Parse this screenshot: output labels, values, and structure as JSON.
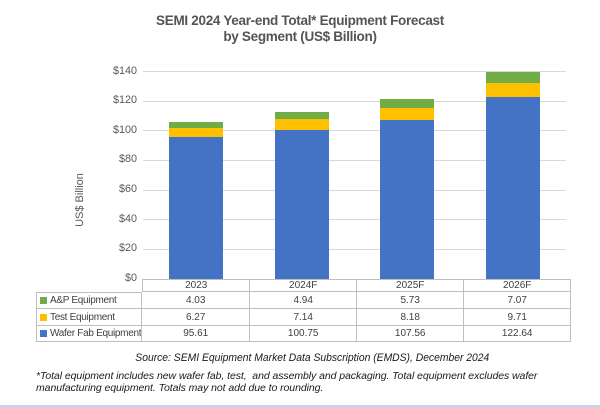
{
  "title": {
    "line1": "SEMI 2024 Year-end Total* Equipment Forecast",
    "line2": "by Segment (US$ Billion)"
  },
  "chart_data": {
    "type": "bar",
    "stacked": true,
    "categories": [
      "2023",
      "2024F",
      "2025F",
      "2026F"
    ],
    "series": [
      {
        "name": "Wafer Fab Equipment",
        "color": "#4472C4",
        "values": [
          95.61,
          100.75,
          107.56,
          122.64
        ]
      },
      {
        "name": "Test Equipment",
        "color": "#FFC000",
        "values": [
          6.27,
          7.14,
          8.18,
          9.71
        ]
      },
      {
        "name": "A&P Equipment",
        "color": "#70AD47",
        "values": [
          4.03,
          4.94,
          5.73,
          7.07
        ]
      }
    ],
    "ylabel": "US$ Billion",
    "ylim": [
      0,
      140
    ],
    "ytick_step": 20,
    "ytick_prefix": "$",
    "grid": true,
    "legend_position": "table-left-column"
  },
  "source_line": "Source: SEMI Equipment Market Data Subscription (EMDS), December 2024",
  "footnote": {
    "line1": "*Total equipment includes new wafer fab, test,  and assembly and packaging. Total equipment excludes wafer",
    "line2": "manufacturing equipment. Totals may not add due to rounding."
  }
}
